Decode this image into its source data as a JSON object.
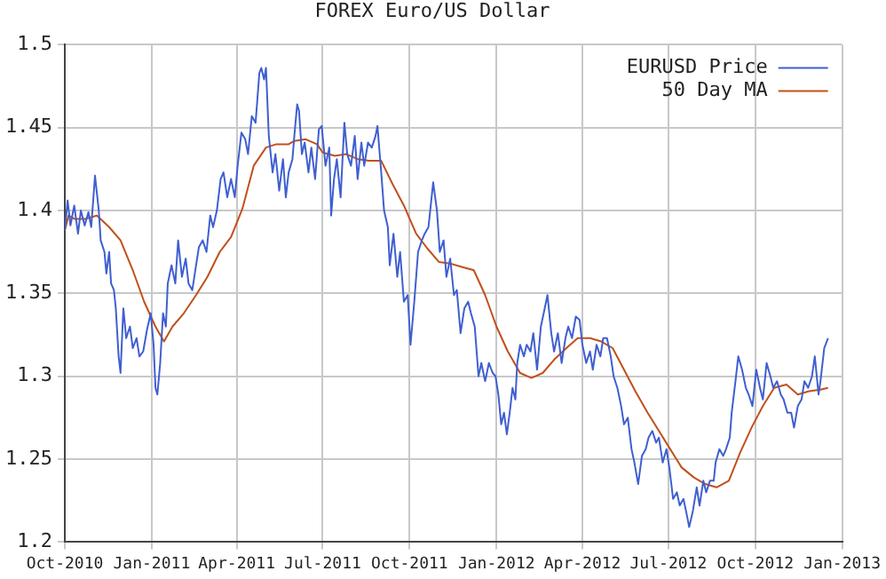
{
  "chart_data": {
    "type": "line",
    "title": "FOREX Euro/US Dollar",
    "xlim": [
      "2010-10-01",
      "2013-01-01"
    ],
    "xticks": [
      {
        "value": "2010-10-01",
        "label": "Oct-2010"
      },
      {
        "value": "2011-01-01",
        "label": "Jan-2011"
      },
      {
        "value": "2011-04-01",
        "label": "Apr-2011"
      },
      {
        "value": "2011-07-01",
        "label": "Jul-2011"
      },
      {
        "value": "2011-10-01",
        "label": "Oct-2011"
      },
      {
        "value": "2012-01-01",
        "label": "Jan-2012"
      },
      {
        "value": "2012-04-01",
        "label": "Apr-2012"
      },
      {
        "value": "2012-07-01",
        "label": "Jul-2012"
      },
      {
        "value": "2012-10-01",
        "label": "Oct-2012"
      },
      {
        "value": "2013-01-01",
        "label": "Jan-2013"
      }
    ],
    "ylim": [
      1.2,
      1.5
    ],
    "yticks": [
      1.2,
      1.25,
      1.3,
      1.35,
      1.4,
      1.45,
      1.5
    ],
    "grid": true,
    "legend": "top right",
    "marker": "none",
    "line_style": "solid",
    "series": [
      {
        "name": "EURUSD Price",
        "color": "#3f5fd0",
        "x": [
          "2010-10-01",
          "2010-10-04",
          "2010-10-07",
          "2010-10-11",
          "2010-10-15",
          "2010-10-18",
          "2010-10-22",
          "2010-10-26",
          "2010-10-29",
          "2010-11-02",
          "2010-11-06",
          "2010-11-08",
          "2010-11-12",
          "2010-11-14",
          "2010-11-17",
          "2010-11-19",
          "2010-11-22",
          "2010-11-24",
          "2010-11-27",
          "2010-11-29",
          "2010-12-02",
          "2010-12-05",
          "2010-12-09",
          "2010-12-12",
          "2010-12-16",
          "2010-12-19",
          "2010-12-23",
          "2010-12-27",
          "2010-12-31",
          "2011-01-03",
          "2011-01-05",
          "2011-01-07",
          "2011-01-10",
          "2011-01-13",
          "2011-01-16",
          "2011-01-18",
          "2011-01-22",
          "2011-01-26",
          "2011-01-29",
          "2011-02-02",
          "2011-02-06",
          "2011-02-09",
          "2011-02-13",
          "2011-02-17",
          "2011-02-20",
          "2011-02-24",
          "2011-02-28",
          "2011-03-04",
          "2011-03-07",
          "2011-03-11",
          "2011-03-15",
          "2011-03-18",
          "2011-03-22",
          "2011-03-26",
          "2011-03-30",
          "2011-04-02",
          "2011-04-06",
          "2011-04-10",
          "2011-04-13",
          "2011-04-17",
          "2011-04-21",
          "2011-04-25",
          "2011-04-27",
          "2011-04-30",
          "2011-05-02",
          "2011-05-05",
          "2011-05-09",
          "2011-05-12",
          "2011-05-16",
          "2011-05-20",
          "2011-05-23",
          "2011-05-26",
          "2011-05-30",
          "2011-06-01",
          "2011-06-04",
          "2011-06-06",
          "2011-06-09",
          "2011-06-12",
          "2011-06-16",
          "2011-06-19",
          "2011-06-23",
          "2011-06-27",
          "2011-06-30",
          "2011-07-04",
          "2011-07-08",
          "2011-07-10",
          "2011-07-13",
          "2011-07-16",
          "2011-07-20",
          "2011-07-24",
          "2011-07-27",
          "2011-07-31",
          "2011-08-04",
          "2011-08-07",
          "2011-08-11",
          "2011-08-14",
          "2011-08-18",
          "2011-08-22",
          "2011-08-26",
          "2011-08-28",
          "2011-09-01",
          "2011-09-04",
          "2011-09-08",
          "2011-09-10",
          "2011-09-14",
          "2011-09-18",
          "2011-09-21",
          "2011-09-25",
          "2011-09-29",
          "2011-10-02",
          "2011-10-06",
          "2011-10-10",
          "2011-10-14",
          "2011-10-17",
          "2011-10-21",
          "2011-10-26",
          "2011-10-30",
          "2011-11-02",
          "2011-11-06",
          "2011-11-09",
          "2011-11-13",
          "2011-11-17",
          "2011-11-20",
          "2011-11-24",
          "2011-11-28",
          "2011-12-02",
          "2011-12-05",
          "2011-12-09",
          "2011-12-13",
          "2011-12-16",
          "2011-12-20",
          "2011-12-24",
          "2011-12-28",
          "2011-12-31",
          "2012-01-03",
          "2012-01-06",
          "2012-01-09",
          "2012-01-12",
          "2012-01-15",
          "2012-01-18",
          "2012-01-21",
          "2012-01-23",
          "2012-01-26",
          "2012-01-30",
          "2012-02-02",
          "2012-02-06",
          "2012-02-09",
          "2012-02-13",
          "2012-02-17",
          "2012-02-20",
          "2012-02-24",
          "2012-02-28",
          "2012-03-02",
          "2012-03-06",
          "2012-03-10",
          "2012-03-14",
          "2012-03-17",
          "2012-03-21",
          "2012-03-25",
          "2012-03-29",
          "2012-04-01",
          "2012-04-05",
          "2012-04-09",
          "2012-04-12",
          "2012-04-16",
          "2012-04-20",
          "2012-04-23",
          "2012-04-27",
          "2012-05-01",
          "2012-05-04",
          "2012-05-08",
          "2012-05-12",
          "2012-05-15",
          "2012-05-19",
          "2012-05-23",
          "2012-05-26",
          "2012-05-30",
          "2012-06-03",
          "2012-06-07",
          "2012-06-10",
          "2012-06-14",
          "2012-06-18",
          "2012-06-21",
          "2012-06-25",
          "2012-06-29",
          "2012-07-02",
          "2012-07-06",
          "2012-07-10",
          "2012-07-13",
          "2012-07-17",
          "2012-07-21",
          "2012-07-23",
          "2012-07-27",
          "2012-07-31",
          "2012-08-03",
          "2012-08-07",
          "2012-08-10",
          "2012-08-14",
          "2012-08-18",
          "2012-08-20",
          "2012-08-24",
          "2012-08-28",
          "2012-08-31",
          "2012-09-04",
          "2012-09-06",
          "2012-09-10",
          "2012-09-13",
          "2012-09-17",
          "2012-09-21",
          "2012-09-24",
          "2012-09-28",
          "2012-10-02",
          "2012-10-06",
          "2012-10-09",
          "2012-10-13",
          "2012-10-17",
          "2012-10-20",
          "2012-10-24",
          "2012-10-28",
          "2012-10-31",
          "2012-11-04",
          "2012-11-08",
          "2012-11-11",
          "2012-11-15",
          "2012-11-19",
          "2012-11-22",
          "2012-11-26",
          "2012-11-30",
          "2012-12-03",
          "2012-12-07",
          "2012-12-09",
          "2012-12-13",
          "2012-12-17"
        ],
        "values": [
          1.388,
          1.406,
          1.391,
          1.403,
          1.386,
          1.4,
          1.391,
          1.399,
          1.39,
          1.421,
          1.4,
          1.382,
          1.375,
          1.362,
          1.375,
          1.356,
          1.352,
          1.341,
          1.312,
          1.302,
          1.341,
          1.323,
          1.33,
          1.317,
          1.323,
          1.312,
          1.315,
          1.328,
          1.338,
          1.319,
          1.293,
          1.289,
          1.308,
          1.338,
          1.33,
          1.356,
          1.367,
          1.356,
          1.382,
          1.36,
          1.371,
          1.356,
          1.352,
          1.367,
          1.378,
          1.382,
          1.375,
          1.397,
          1.39,
          1.4,
          1.419,
          1.423,
          1.408,
          1.419,
          1.408,
          1.427,
          1.447,
          1.443,
          1.434,
          1.457,
          1.453,
          1.483,
          1.486,
          1.479,
          1.486,
          1.445,
          1.423,
          1.434,
          1.412,
          1.431,
          1.408,
          1.423,
          1.431,
          1.445,
          1.464,
          1.46,
          1.434,
          1.441,
          1.423,
          1.438,
          1.419,
          1.449,
          1.451,
          1.427,
          1.438,
          1.397,
          1.419,
          1.431,
          1.408,
          1.453,
          1.434,
          1.427,
          1.445,
          1.419,
          1.441,
          1.427,
          1.441,
          1.438,
          1.445,
          1.451,
          1.423,
          1.4,
          1.39,
          1.367,
          1.386,
          1.36,
          1.375,
          1.345,
          1.349,
          1.319,
          1.345,
          1.375,
          1.382,
          1.386,
          1.39,
          1.417,
          1.4,
          1.375,
          1.382,
          1.36,
          1.371,
          1.349,
          1.352,
          1.326,
          1.341,
          1.345,
          1.338,
          1.33,
          1.3,
          1.308,
          1.297,
          1.308,
          1.302,
          1.3,
          1.289,
          1.271,
          1.278,
          1.265,
          1.278,
          1.293,
          1.286,
          1.308,
          1.319,
          1.312,
          1.319,
          1.315,
          1.326,
          1.304,
          1.33,
          1.338,
          1.349,
          1.326,
          1.315,
          1.326,
          1.308,
          1.323,
          1.33,
          1.323,
          1.336,
          1.334,
          1.319,
          1.308,
          1.315,
          1.304,
          1.319,
          1.312,
          1.323,
          1.323,
          1.312,
          1.3,
          1.293,
          1.282,
          1.271,
          1.275,
          1.256,
          1.248,
          1.235,
          1.252,
          1.256,
          1.263,
          1.267,
          1.26,
          1.263,
          1.248,
          1.256,
          1.245,
          1.226,
          1.23,
          1.222,
          1.226,
          1.215,
          1.209,
          1.219,
          1.233,
          1.222,
          1.237,
          1.23,
          1.237,
          1.237,
          1.248,
          1.256,
          1.252,
          1.256,
          1.263,
          1.278,
          1.297,
          1.312,
          1.304,
          1.293,
          1.289,
          1.282,
          1.304,
          1.293,
          1.286,
          1.308,
          1.3,
          1.293,
          1.297,
          1.289,
          1.286,
          1.278,
          1.278,
          1.269,
          1.282,
          1.286,
          1.297,
          1.293,
          1.3,
          1.312,
          1.289,
          1.297,
          1.317,
          1.323
        ]
      },
      {
        "name": "50 Day MA",
        "color": "#c0501c",
        "x": [
          "2010-10-01",
          "2010-10-05",
          "2010-10-11",
          "2010-10-23",
          "2010-11-04",
          "2010-11-17",
          "2010-11-29",
          "2010-12-12",
          "2010-12-24",
          "2011-01-05",
          "2011-01-14",
          "2011-01-23",
          "2011-02-04",
          "2011-02-17",
          "2011-03-01",
          "2011-03-14",
          "2011-03-26",
          "2011-04-07",
          "2011-04-19",
          "2011-05-02",
          "2011-05-13",
          "2011-05-26",
          "2011-06-01",
          "2011-06-13",
          "2011-06-25",
          "2011-07-01",
          "2011-07-14",
          "2011-07-26",
          "2011-08-07",
          "2011-08-19",
          "2011-09-01",
          "2011-09-13",
          "2011-09-25",
          "2011-10-08",
          "2011-10-20",
          "2011-11-01",
          "2011-11-13",
          "2011-11-25",
          "2011-12-08",
          "2011-12-20",
          "2012-01-01",
          "2012-01-13",
          "2012-01-26",
          "2012-02-07",
          "2012-02-19",
          "2012-03-02",
          "2012-03-15",
          "2012-03-27",
          "2012-04-09",
          "2012-04-21",
          "2012-05-03",
          "2012-05-15",
          "2012-05-27",
          "2012-06-09",
          "2012-06-21",
          "2012-07-03",
          "2012-07-15",
          "2012-07-28",
          "2012-08-09",
          "2012-08-21",
          "2012-09-03",
          "2012-09-15",
          "2012-09-27",
          "2012-10-09",
          "2012-10-21",
          "2012-11-03",
          "2012-11-15",
          "2012-11-27",
          "2012-12-09",
          "2012-12-17"
        ],
        "values": [
          1.388,
          1.397,
          1.395,
          1.395,
          1.397,
          1.39,
          1.382,
          1.364,
          1.345,
          1.33,
          1.321,
          1.33,
          1.338,
          1.349,
          1.36,
          1.375,
          1.384,
          1.401,
          1.427,
          1.438,
          1.44,
          1.44,
          1.442,
          1.443,
          1.44,
          1.435,
          1.433,
          1.434,
          1.431,
          1.43,
          1.43,
          1.416,
          1.403,
          1.386,
          1.377,
          1.369,
          1.368,
          1.366,
          1.364,
          1.349,
          1.33,
          1.315,
          1.302,
          1.299,
          1.302,
          1.31,
          1.317,
          1.323,
          1.323,
          1.321,
          1.317,
          1.304,
          1.291,
          1.278,
          1.267,
          1.256,
          1.245,
          1.239,
          1.235,
          1.233,
          1.237,
          1.254,
          1.269,
          1.282,
          1.293,
          1.295,
          1.289,
          1.291,
          1.292,
          1.293
        ]
      }
    ]
  }
}
